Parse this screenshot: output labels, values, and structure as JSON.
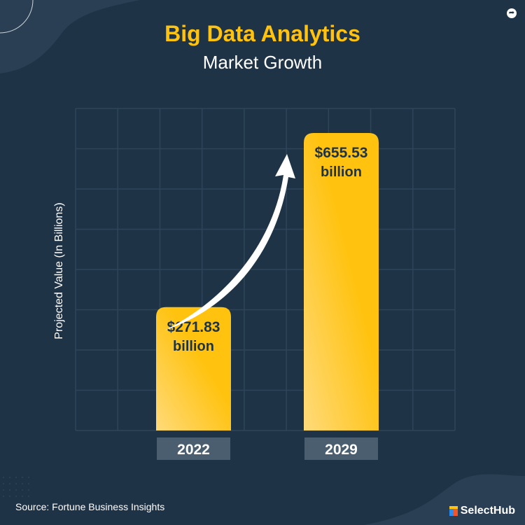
{
  "chart_data": {
    "type": "bar",
    "title": "Big Data Analytics",
    "subtitle": "Market Growth",
    "ylabel": "Projected Value (In Billions)",
    "xlabel": "",
    "categories": [
      "2022",
      "2029"
    ],
    "values": [
      271.83,
      655.53
    ],
    "data_labels": [
      {
        "amount": "$271.83",
        "unit": "billion"
      },
      {
        "amount": "$655.53",
        "unit": "billion"
      }
    ],
    "grid": true,
    "annotation": "upward growth arrow"
  },
  "source": "Source: Fortune Business Insights",
  "brand": "SelectHub",
  "icons": {
    "share": "share-icon"
  },
  "colors": {
    "background": "#1f3347",
    "bar": "#ffc20e",
    "bar_light": "#ffda7a",
    "title": "#ffc20e",
    "category_box": "#4a5e70",
    "grid": "#2f4458"
  }
}
